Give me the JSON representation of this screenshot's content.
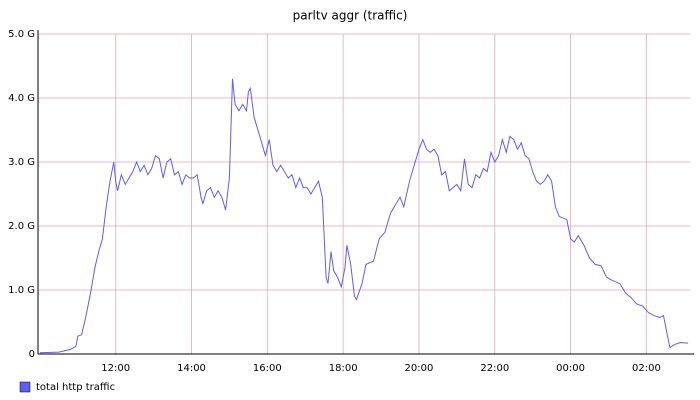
{
  "chart_data": {
    "type": "line",
    "title": "parltv aggr (traffic)",
    "x": [
      10.0,
      10.5,
      10.8,
      10.95,
      11.0,
      11.1,
      11.2,
      11.3,
      11.35,
      11.45,
      11.55,
      11.65,
      11.75,
      11.85,
      11.95,
      12.0,
      12.05,
      12.15,
      12.25,
      12.35,
      12.45,
      12.55,
      12.65,
      12.75,
      12.85,
      12.95,
      13.05,
      13.15,
      13.25,
      13.35,
      13.45,
      13.55,
      13.65,
      13.75,
      13.85,
      13.95,
      14.05,
      14.15,
      14.25,
      14.3,
      14.4,
      14.5,
      14.6,
      14.7,
      14.8,
      14.9,
      15.0,
      15.08,
      15.15,
      15.25,
      15.35,
      15.45,
      15.5,
      15.55,
      15.65,
      15.75,
      15.85,
      15.95,
      16.05,
      16.15,
      16.25,
      16.35,
      16.45,
      16.55,
      16.65,
      16.75,
      16.85,
      16.95,
      17.05,
      17.15,
      17.25,
      17.35,
      17.45,
      17.55,
      17.6,
      17.68,
      17.75,
      17.85,
      17.95,
      18.05,
      18.1,
      18.2,
      18.3,
      18.35,
      18.5,
      18.6,
      18.8,
      18.95,
      19.1,
      19.25,
      19.35,
      19.5,
      19.6,
      19.75,
      19.85,
      20.0,
      20.1,
      20.2,
      20.3,
      20.4,
      20.5,
      20.6,
      20.7,
      20.8,
      20.9,
      21.0,
      21.1,
      21.2,
      21.3,
      21.4,
      21.5,
      21.6,
      21.7,
      21.8,
      21.9,
      22.0,
      22.1,
      22.2,
      22.3,
      22.4,
      22.5,
      22.6,
      22.7,
      22.8,
      22.9,
      23.0,
      23.1,
      23.2,
      23.3,
      23.4,
      23.5,
      23.6,
      23.7,
      23.9,
      24.0,
      24.1,
      24.2,
      24.35,
      24.5,
      24.65,
      24.8,
      24.95,
      25.1,
      25.3,
      25.45,
      25.6,
      25.75,
      25.9,
      26.05,
      26.2,
      26.35,
      26.45,
      26.55,
      26.62,
      26.75,
      26.9,
      27.1
    ],
    "series": [
      {
        "name": "total http traffic",
        "color": "#5e5ef0",
        "values": [
          0.02,
          0.03,
          0.07,
          0.12,
          0.28,
          0.3,
          0.55,
          0.85,
          1.0,
          1.35,
          1.6,
          1.8,
          2.3,
          2.7,
          3.0,
          2.7,
          2.55,
          2.8,
          2.65,
          2.75,
          2.85,
          3.0,
          2.85,
          2.95,
          2.8,
          2.9,
          3.1,
          3.05,
          2.75,
          3.0,
          3.05,
          2.8,
          2.85,
          2.65,
          2.8,
          2.75,
          2.75,
          2.8,
          2.45,
          2.35,
          2.55,
          2.6,
          2.45,
          2.55,
          2.45,
          2.25,
          2.75,
          4.3,
          3.9,
          3.8,
          3.9,
          3.8,
          4.1,
          4.15,
          3.7,
          3.5,
          3.3,
          3.1,
          3.35,
          2.95,
          2.85,
          2.95,
          2.85,
          2.75,
          2.8,
          2.6,
          2.75,
          2.6,
          2.6,
          2.5,
          2.6,
          2.7,
          2.45,
          1.2,
          1.1,
          1.6,
          1.3,
          1.2,
          1.05,
          1.35,
          1.7,
          1.4,
          0.9,
          0.85,
          1.1,
          1.4,
          1.45,
          1.8,
          1.9,
          2.2,
          2.3,
          2.45,
          2.3,
          2.7,
          2.9,
          3.2,
          3.35,
          3.2,
          3.15,
          3.2,
          3.1,
          2.8,
          2.85,
          2.55,
          2.6,
          2.65,
          2.55,
          3.05,
          2.65,
          2.6,
          2.8,
          2.75,
          2.9,
          2.85,
          3.15,
          3.0,
          3.1,
          3.35,
          3.15,
          3.4,
          3.35,
          3.2,
          3.3,
          3.1,
          3.05,
          2.85,
          2.7,
          2.65,
          2.7,
          2.8,
          2.7,
          2.3,
          2.15,
          2.1,
          1.8,
          1.75,
          1.85,
          1.7,
          1.5,
          1.4,
          1.38,
          1.2,
          1.15,
          1.1,
          0.95,
          0.88,
          0.78,
          0.75,
          0.65,
          0.6,
          0.57,
          0.6,
          0.3,
          0.1,
          0.15,
          0.18,
          0.17
        ]
      }
    ],
    "xlim": [
      9.95,
      27.15
    ],
    "xticks": [
      {
        "value": 12,
        "label": "12:00"
      },
      {
        "value": 14,
        "label": "14:00"
      },
      {
        "value": 16,
        "label": "16:00"
      },
      {
        "value": 18,
        "label": "18:00"
      },
      {
        "value": 20,
        "label": "20:00"
      },
      {
        "value": 22,
        "label": "22:00"
      },
      {
        "value": 24,
        "label": "00:00"
      },
      {
        "value": 26,
        "label": "02:00"
      }
    ],
    "ylim": [
      0,
      5
    ],
    "yticks": [
      0,
      {
        "value": 1,
        "label": "1.0 G"
      },
      {
        "value": 2,
        "label": "2.0 G"
      },
      {
        "value": 3,
        "label": "3.0 G"
      },
      {
        "value": 4,
        "label": "4.0 G"
      },
      {
        "value": 5,
        "label": "5.0 G"
      }
    ],
    "grid": true,
    "legend": "bottom-left"
  }
}
